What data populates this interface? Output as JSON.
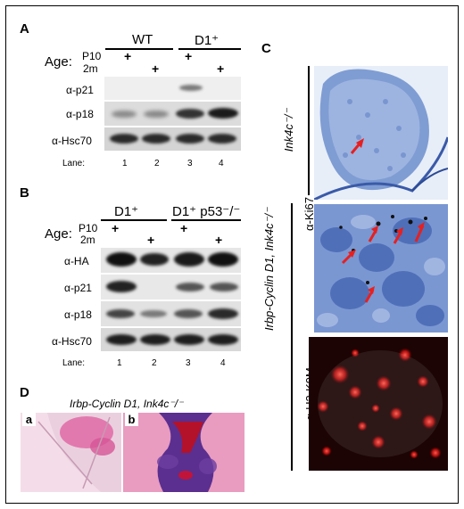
{
  "panel_A": {
    "letter": "A",
    "groups": [
      "WT",
      "D1⁺"
    ],
    "age_label": "Age:",
    "age_rows": [
      "P10",
      "2m"
    ],
    "plus": "+",
    "bands": [
      "α-p21",
      "α-p18",
      "α-Hsc70"
    ],
    "lane_label": "Lane:",
    "lanes": [
      "1",
      "2",
      "3",
      "4"
    ]
  },
  "panel_B": {
    "letter": "B",
    "groups": [
      "D1⁺",
      "D1⁺ p53⁻/⁻"
    ],
    "age_label": "Age:",
    "age_rows": [
      "P10",
      "2m"
    ],
    "plus": "+",
    "bands": [
      "α-HA",
      "α-p21",
      "α-p18",
      "α-Hsc70"
    ],
    "lane_label": "Lane:",
    "lanes": [
      "1",
      "2",
      "3",
      "4"
    ]
  },
  "panel_C": {
    "letter": "C",
    "label_top": "Ink4c⁻/⁻",
    "label_bottom": "Irbp-Cyclin D1, Ink4c⁻/⁻",
    "stain_ki67": "α-Ki67",
    "stain_h3": "α-H3-K9M"
  },
  "panel_D": {
    "letter": "D",
    "title": "Irbp-Cyclin D1, Ink4c⁻/⁻",
    "sub_a": "a",
    "sub_b": "b"
  },
  "colors": {
    "ki67_bg": "#4a6fbf",
    "h3_bg": "#1a0505",
    "h3_spot": "#ff2a2a",
    "arrow": "#e62020",
    "he_pink": "#e46fa8",
    "he_purple": "#5b2f8f"
  }
}
